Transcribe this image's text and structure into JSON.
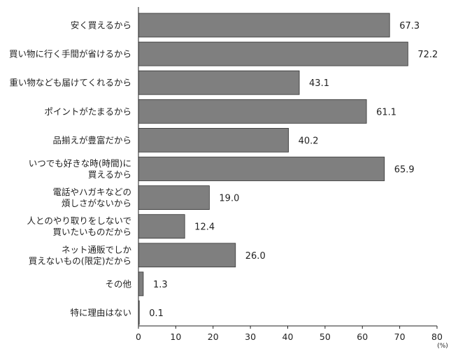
{
  "chart_data": {
    "type": "bar",
    "orientation": "horizontal",
    "categories": [
      [
        "安く買えるから"
      ],
      [
        "買い物に行く手間が省けるから"
      ],
      [
        "重い物なども届けてくれるから"
      ],
      [
        "ポイントがたまるから"
      ],
      [
        "品揃えが豊富だから"
      ],
      [
        "いつでも好きな時(時間)に",
        "買えるから"
      ],
      [
        "電話やハガキなどの",
        "煩しさがないから"
      ],
      [
        "人とのやり取りをしないで",
        "買いたいものだから"
      ],
      [
        "ネット通販でしか",
        "買えないもの(限定)だから"
      ],
      [
        "その他"
      ],
      [
        "特に理由はない"
      ]
    ],
    "values": [
      67.3,
      72.2,
      43.1,
      61.1,
      40.2,
      65.9,
      19.0,
      12.4,
      26.0,
      1.3,
      0.1
    ],
    "value_labels": [
      "67.3",
      "72.2",
      "43.1",
      "61.1",
      "40.2",
      "65.9",
      "19.0",
      "12.4",
      "26.0",
      "1.3",
      "0.1"
    ],
    "x_ticks": [
      "0",
      "10",
      "20",
      "30",
      "40",
      "50",
      "60",
      "70",
      "80"
    ],
    "xlim": [
      0,
      80
    ],
    "x_unit": "(%)",
    "bar_color": "#7f7f7f",
    "bar_edge_color": "#333333",
    "grid": false,
    "legend": "none"
  }
}
